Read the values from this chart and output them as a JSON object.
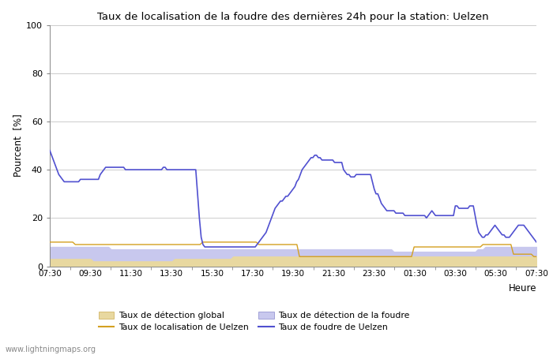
{
  "title": "Taux de localisation de la foudre des dernières 24h pour la station: Uelzen",
  "ylabel": "Pourcent  [%]",
  "heure_label": "Heure",
  "xlim": [
    0,
    48
  ],
  "ylim": [
    0,
    100
  ],
  "yticks": [
    0,
    20,
    40,
    60,
    80,
    100
  ],
  "xtick_labels": [
    "07:30",
    "09:30",
    "11:30",
    "13:30",
    "15:30",
    "17:30",
    "19:30",
    "21:30",
    "23:30",
    "01:30",
    "03:30",
    "05:30",
    "07:30"
  ],
  "xtick_positions": [
    0,
    4,
    8,
    12,
    16,
    20,
    24,
    28,
    32,
    36,
    40,
    44,
    48
  ],
  "watermark": "www.lightningmaps.org",
  "background_color": "#ffffff",
  "plot_bg_color": "#ffffff",
  "grid_color": "#cccccc",
  "color_detection_global": "#e8d8a0",
  "color_detection_foudre": "#c8c8ee",
  "color_localisation_uelzen": "#d4a020",
  "color_foudre_uelzen": "#5050d0",
  "legend_label_1": "Taux de détection global",
  "legend_label_2": "Taux de localisation de Uelzen",
  "legend_label_3": "Taux de détection de la foudre",
  "legend_label_4": "Taux de foudre de Uelzen",
  "detection_global": [
    3,
    3,
    3,
    3,
    3,
    3,
    3,
    3,
    3,
    3,
    3,
    3,
    3,
    3,
    3,
    3,
    3,
    2,
    2,
    2,
    2,
    2,
    2,
    2,
    2,
    2,
    2,
    2,
    2,
    2,
    2,
    2,
    2,
    2,
    2,
    2,
    2,
    2,
    2,
    2,
    2,
    2,
    2,
    2,
    2,
    2,
    2,
    2,
    2,
    3,
    3,
    3,
    3,
    3,
    3,
    3,
    3,
    3,
    3,
    3,
    3,
    3,
    3,
    3,
    3,
    3,
    3,
    3,
    3,
    3,
    3,
    3,
    4,
    4,
    4,
    4,
    4,
    4,
    4,
    4,
    4,
    4,
    4,
    4,
    4,
    4,
    4,
    4,
    4,
    4,
    4,
    4,
    4,
    4,
    4,
    4,
    4,
    4,
    4,
    4,
    4,
    4,
    4,
    4,
    4,
    4,
    4,
    4,
    4,
    4,
    4,
    4,
    4,
    4,
    4,
    4,
    4,
    4,
    4,
    4,
    4,
    4,
    4,
    4,
    4,
    4,
    4,
    4,
    4,
    4,
    4,
    4,
    4,
    4,
    4,
    4,
    4,
    4,
    4,
    4,
    4,
    4,
    4,
    4,
    4,
    4,
    4,
    4,
    4,
    4,
    4,
    4,
    4,
    4,
    4,
    4,
    4,
    4,
    4,
    4,
    4,
    4,
    4,
    4,
    4,
    4,
    4,
    4,
    4,
    4,
    4,
    4,
    4,
    4,
    4,
    4,
    4,
    4,
    4,
    4,
    4,
    4,
    4,
    4,
    4,
    4,
    4,
    4,
    4,
    4,
    4,
    4
  ],
  "detection_foudre": [
    8,
    8,
    8,
    8,
    8,
    8,
    8,
    8,
    8,
    8,
    8,
    8,
    8,
    8,
    8,
    8,
    8,
    8,
    8,
    8,
    8,
    8,
    8,
    8,
    7,
    7,
    7,
    7,
    7,
    7,
    7,
    7,
    7,
    7,
    7,
    7,
    7,
    7,
    7,
    7,
    7,
    7,
    7,
    7,
    7,
    7,
    7,
    7,
    7,
    7,
    7,
    7,
    7,
    7,
    7,
    7,
    7,
    7,
    7,
    7,
    7,
    7,
    7,
    7,
    7,
    7,
    7,
    7,
    7,
    7,
    7,
    7,
    7,
    7,
    7,
    7,
    7,
    7,
    7,
    7,
    7,
    7,
    7,
    7,
    7,
    7,
    7,
    7,
    7,
    7,
    7,
    7,
    7,
    7,
    7,
    7,
    7,
    7,
    7,
    7,
    7,
    7,
    7,
    7,
    7,
    7,
    7,
    7,
    7,
    7,
    7,
    7,
    7,
    7,
    7,
    7,
    7,
    7,
    7,
    7,
    7,
    7,
    7,
    7,
    7,
    7,
    7,
    7,
    7,
    7,
    7,
    7,
    7,
    7,
    7,
    6,
    6,
    6,
    6,
    6,
    6,
    6,
    6,
    6,
    6,
    6,
    6,
    6,
    6,
    6,
    6,
    6,
    6,
    6,
    6,
    6,
    6,
    6,
    6,
    6,
    6,
    6,
    6,
    6,
    6,
    6,
    6,
    6,
    7,
    7,
    7,
    8,
    8,
    8,
    8,
    8,
    8,
    8,
    8,
    8,
    8,
    8,
    8,
    8,
    8,
    8,
    8,
    8,
    8,
    8,
    8,
    8
  ],
  "localisation_uelzen": [
    10,
    10,
    10,
    10,
    10,
    10,
    10,
    10,
    10,
    10,
    9,
    9,
    9,
    9,
    9,
    9,
    9,
    9,
    9,
    9,
    9,
    9,
    9,
    9,
    9,
    9,
    9,
    9,
    9,
    9,
    9,
    9,
    9,
    9,
    9,
    9,
    9,
    9,
    9,
    9,
    9,
    9,
    9,
    9,
    9,
    9,
    9,
    9,
    9,
    9,
    9,
    9,
    9,
    9,
    9,
    9,
    9,
    9,
    9,
    9,
    10,
    10,
    10,
    10,
    10,
    10,
    10,
    10,
    10,
    10,
    10,
    10,
    10,
    10,
    10,
    10,
    10,
    10,
    10,
    10,
    10,
    10,
    9,
    9,
    9,
    9,
    9,
    9,
    9,
    9,
    9,
    9,
    9,
    9,
    9,
    9,
    9,
    9,
    4,
    4,
    4,
    4,
    4,
    4,
    4,
    4,
    4,
    4,
    4,
    4,
    4,
    4,
    4,
    4,
    4,
    4,
    4,
    4,
    4,
    4,
    4,
    4,
    4,
    4,
    4,
    4,
    4,
    4,
    4,
    4,
    4,
    4,
    4,
    4,
    4,
    4,
    4,
    4,
    4,
    4,
    4,
    4,
    4,
    8,
    8,
    8,
    8,
    8,
    8,
    8,
    8,
    8,
    8,
    8,
    8,
    8,
    8,
    8,
    8,
    8,
    8,
    8,
    8,
    8,
    8,
    8,
    8,
    8,
    8,
    8,
    9,
    9,
    9,
    9,
    9,
    9,
    9,
    9,
    9,
    9,
    9,
    9,
    5,
    5,
    5,
    5,
    5,
    5,
    5,
    5,
    4,
    4
  ],
  "foudre_uelzen": [
    48,
    46,
    44,
    42,
    40,
    38,
    37,
    36,
    35,
    35,
    35,
    35,
    35,
    35,
    35,
    35,
    35,
    36,
    36,
    36,
    36,
    36,
    36,
    36,
    36,
    36,
    36,
    36,
    38,
    39,
    40,
    41,
    41,
    41,
    41,
    41,
    41,
    41,
    41,
    41,
    41,
    41,
    40,
    40,
    40,
    40,
    40,
    40,
    40,
    40,
    40,
    40,
    40,
    40,
    40,
    40,
    40,
    40,
    40,
    40,
    40,
    40,
    40,
    41,
    41,
    40,
    40,
    40,
    40,
    40,
    40,
    40,
    40,
    40,
    40,
    40,
    40,
    40,
    40,
    40,
    40,
    40,
    30,
    20,
    12,
    9,
    8,
    8,
    8,
    8,
    8,
    8,
    8,
    8,
    8,
    8,
    8,
    8,
    8,
    8,
    8,
    8,
    8,
    8,
    8,
    8,
    8,
    8,
    8,
    8,
    8,
    8,
    8,
    8,
    8,
    9,
    10,
    11,
    12,
    13,
    14,
    16,
    18,
    20,
    22,
    24,
    25,
    26,
    27,
    27,
    28,
    29,
    29,
    30,
    31,
    32,
    33,
    35,
    36,
    38,
    40,
    41,
    42,
    43,
    44,
    45,
    45,
    46,
    46,
    45,
    45,
    44,
    44,
    44,
    44,
    44,
    44,
    44,
    43,
    43,
    43,
    43,
    43,
    40,
    39,
    38,
    38,
    37,
    37,
    37,
    38,
    38,
    38,
    38,
    38,
    38,
    38,
    38,
    38,
    35,
    32,
    30,
    30,
    28,
    26,
    25,
    24,
    23,
    23,
    23,
    23,
    23,
    22,
    22,
    22,
    22,
    22,
    21,
    21,
    21,
    21,
    21,
    21,
    21,
    21,
    21,
    21,
    21,
    21,
    20,
    21,
    22,
    23,
    22,
    21,
    21,
    21,
    21,
    21,
    21,
    21,
    21,
    21,
    21,
    21,
    25,
    25,
    24,
    24,
    24,
    24,
    24,
    24,
    25,
    25,
    25,
    21,
    17,
    14,
    13,
    12,
    12,
    13,
    13,
    14,
    15,
    16,
    17,
    16,
    15,
    14,
    13,
    13,
    12,
    12,
    12,
    13,
    14,
    15,
    16,
    17,
    17,
    17,
    17,
    16,
    15,
    14,
    13,
    12,
    11,
    10
  ]
}
